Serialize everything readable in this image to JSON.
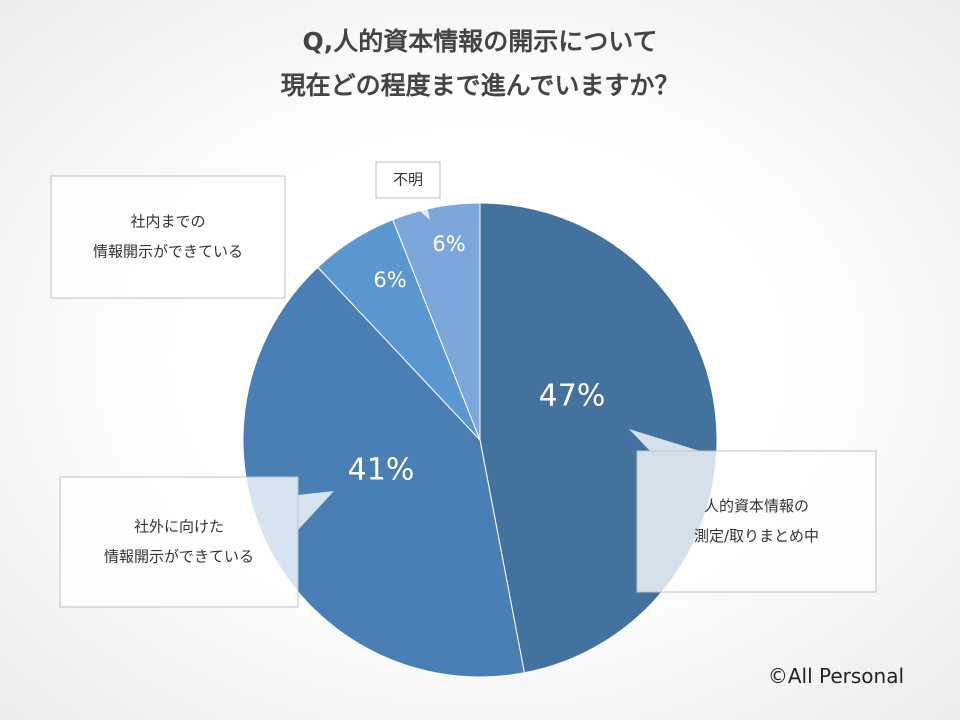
{
  "title_line1": "Q,人的資本情報の開示について",
  "title_line2": "現在どの程度まで進んでいますか？",
  "copyright": "©All Personal",
  "chart_data": {
    "type": "pie",
    "start": "top, clockwise",
    "slices": [
      {
        "label_lines": [
          "人的資本情報の",
          "測定/取りまとめ中"
        ],
        "value": 47,
        "display": "47%",
        "color": "#44729f"
      },
      {
        "label_lines": [
          "社外に向けた",
          "情報開示ができている"
        ],
        "value": 41,
        "display": "41%",
        "color": "#4a7fb5"
      },
      {
        "label_lines": [
          "社内までの",
          "情報開示ができている"
        ],
        "value": 6,
        "display": "6%",
        "color": "#5b97d0"
      },
      {
        "label_lines": [
          "不明"
        ],
        "value": 6,
        "display": "6%",
        "color": "#7ba7db"
      }
    ]
  }
}
